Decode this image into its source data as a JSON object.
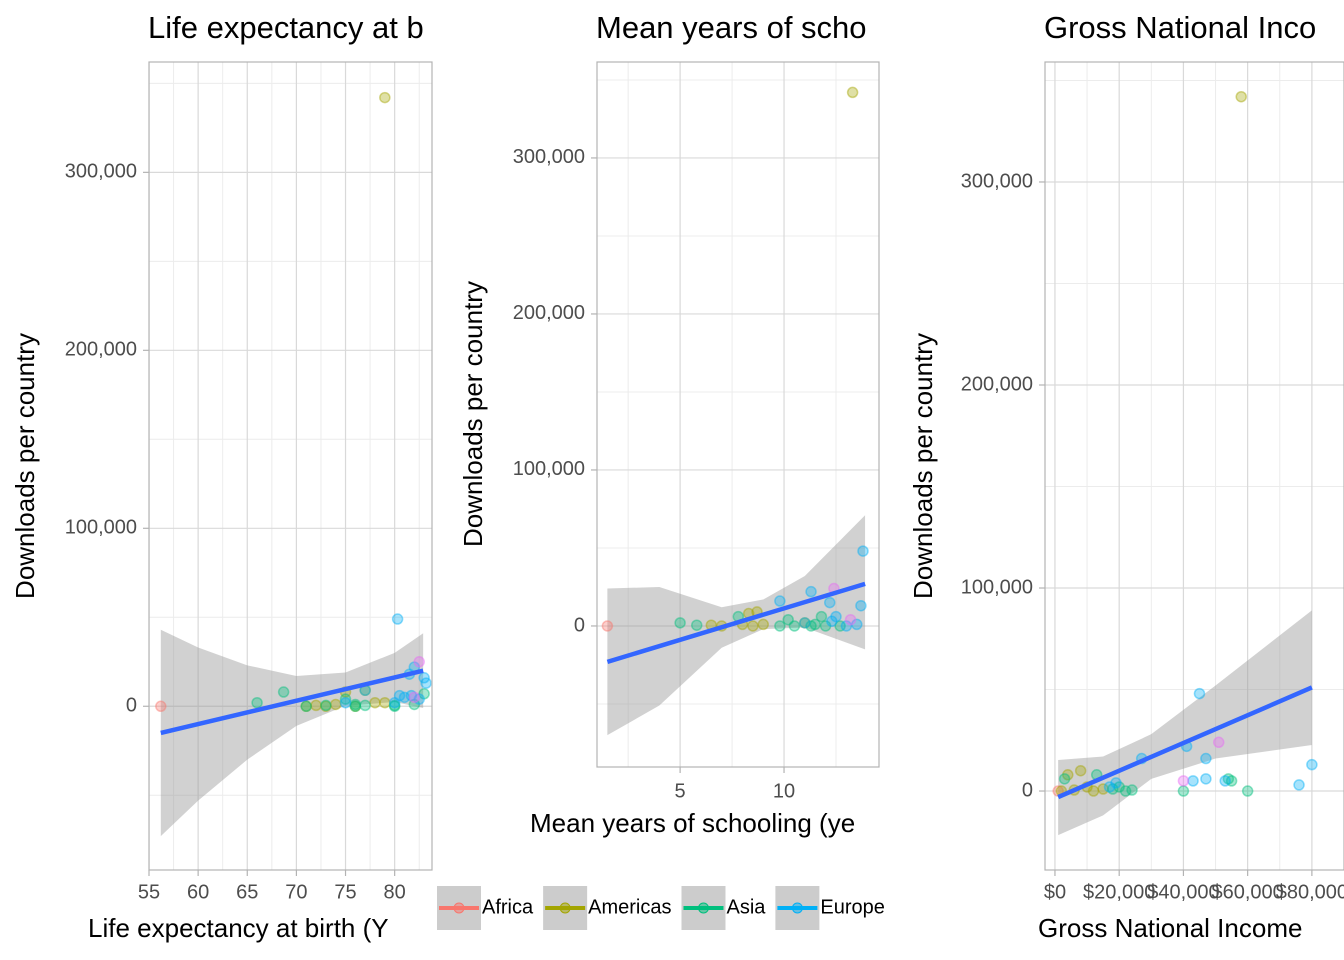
{
  "chart_data": [
    {
      "type": "scatter",
      "title": "Life expectancy at b",
      "x_label": "Life expectancy at birth (Y",
      "y_label": "Downloads per country",
      "xlim": [
        55,
        83.8
      ],
      "ylim": [
        -92000,
        362000
      ],
      "xticks": [
        55,
        60,
        65,
        70,
        75,
        80
      ],
      "yticks": [
        0,
        {
          "value": 100000,
          "label": "100,000"
        },
        {
          "value": 200000,
          "label": "200,000"
        },
        {
          "value": 300000,
          "label": "300,000"
        }
      ],
      "grid": true,
      "series": [
        {
          "name": "Africa",
          "color": "#F8766D",
          "x": [
            56.2
          ],
          "y": [
            0
          ]
        },
        {
          "name": "Americas",
          "color": "#A3A500",
          "x": [
            79,
            75,
            78,
            73,
            72,
            77,
            74,
            76,
            71,
            79
          ],
          "y": [
            342000,
            8000,
            2000,
            0,
            500,
            9000,
            1000,
            0,
            0,
            2000
          ]
        },
        {
          "name": "Asia",
          "color": "#00BF7D",
          "x": [
            66,
            68.7,
            71,
            75,
            76,
            80,
            82,
            83,
            73,
            77,
            80,
            76
          ],
          "y": [
            2000,
            8000,
            0,
            4000,
            1000,
            500,
            1000,
            7000,
            500,
            500,
            0,
            0
          ]
        },
        {
          "name": "Europe",
          "color": "#00B0F6",
          "x": [
            80.3,
            81.5,
            82,
            83,
            83.2,
            80.5,
            81,
            77,
            80,
            81.7,
            82.5,
            75
          ],
          "y": [
            49000,
            18000,
            22000,
            16000,
            13000,
            6000,
            5000,
            9000,
            2000,
            6000,
            4000,
            2000
          ]
        },
        {
          "color": "#E76BF3",
          "x": [
            82.5,
            82
          ],
          "y": [
            25000,
            5000
          ]
        }
      ],
      "fit": {
        "color": "#3366FF",
        "x": [
          56.2,
          82.9
        ],
        "y": [
          -15000,
          20000
        ]
      },
      "band": {
        "color": "#999999",
        "x": [
          56.2,
          60,
          65,
          70,
          75,
          80,
          82.9
        ],
        "upper": [
          43000,
          33000,
          23000,
          17000,
          19000,
          30000,
          41000
        ],
        "lower": [
          -73000,
          -53000,
          -30000,
          -11000,
          300,
          2400,
          -1000
        ]
      }
    },
    {
      "type": "scatter",
      "title": "Mean years of scho",
      "x_label": "Mean years of schooling (ye",
      "y_label": "Downloads per country",
      "xlim": [
        1,
        14.57
      ],
      "ylim": [
        -90400,
        361500
      ],
      "xticks": [
        5,
        10
      ],
      "yticks": [
        0,
        {
          "value": 100000,
          "label": "100,000"
        },
        {
          "value": 200000,
          "label": "200,000"
        },
        {
          "value": 300000,
          "label": "300,000"
        }
      ],
      "grid": true,
      "series": [
        {
          "color": "#F8766D",
          "x": [
            1.5
          ],
          "y": [
            0
          ]
        },
        {
          "color": "#A3A500",
          "x": [
            13.3,
            8,
            8.3,
            8.7,
            7,
            6.5,
            9,
            11,
            8.5
          ],
          "y": [
            342000,
            1000,
            8000,
            9000,
            0,
            500,
            1000,
            2000,
            0
          ]
        },
        {
          "color": "#00BF7D",
          "x": [
            5,
            5.8,
            7.8,
            10.2,
            10.5,
            11.3,
            12,
            12.7,
            11.8,
            9.8,
            11.5
          ],
          "y": [
            2000,
            500,
            6000,
            4000,
            0,
            0,
            0,
            0,
            6000,
            0,
            1000
          ]
        },
        {
          "color": "#00B0F6",
          "x": [
            9.8,
            11.3,
            12.2,
            13.7,
            13.8,
            13.5,
            12.5,
            11,
            12.3,
            13
          ],
          "y": [
            16000,
            22000,
            15000,
            13000,
            48000,
            1000,
            6000,
            2000,
            3000,
            0
          ]
        },
        {
          "color": "#E76BF3",
          "x": [
            12.4,
            13.2
          ],
          "y": [
            24000,
            4000
          ]
        }
      ],
      "fit": {
        "color": "#3366FF",
        "x": [
          1.5,
          13.9
        ],
        "y": [
          -23000,
          27000
        ]
      },
      "band": {
        "color": "#999999",
        "x": [
          1.5,
          4,
          7,
          9,
          11,
          13.9
        ],
        "upper": [
          24000,
          25000,
          12000,
          17000,
          32000,
          71000
        ],
        "lower": [
          -70000,
          -51000,
          -14000,
          -2000,
          -1000,
          -15000
        ]
      }
    },
    {
      "type": "scatter",
      "title": "Gross National Inco",
      "x_label": "Gross National Income",
      "y_label": "Downloads per country",
      "xlim": [
        -3100,
        90000
      ],
      "ylim": [
        -38900,
        359100
      ],
      "xticks": [
        {
          "value": 0,
          "label": "$0"
        },
        {
          "value": 20000,
          "label": "$20,000"
        },
        {
          "value": 40000,
          "label": "$40,000"
        },
        {
          "value": 60000,
          "label": "$60,000"
        },
        {
          "value": 80000,
          "label": "$80,000"
        }
      ],
      "yticks": [
        0,
        {
          "value": 100000,
          "label": "100,000"
        },
        {
          "value": 200000,
          "label": "200,000"
        },
        {
          "value": 300000,
          "label": "300,000"
        }
      ],
      "grid": true,
      "series": [
        {
          "color": "#F8766D",
          "x": [
            1000
          ],
          "y": [
            0
          ]
        },
        {
          "color": "#A3A500",
          "x": [
            58000,
            8000,
            4000,
            2000,
            10000,
            15000,
            12000,
            6000
          ],
          "y": [
            342000,
            10000,
            8000,
            0,
            2000,
            1000,
            0,
            500
          ]
        },
        {
          "color": "#00BF7D",
          "x": [
            3000,
            13000,
            18000,
            22000,
            40000,
            54000,
            55000,
            60000,
            24000,
            20000
          ],
          "y": [
            6000,
            8000,
            1000,
            0,
            0,
            6000,
            5000,
            0,
            500,
            2000
          ]
        },
        {
          "color": "#00B0F6",
          "x": [
            45000,
            27000,
            41000,
            47000,
            43000,
            47000,
            53000,
            76000,
            80000,
            17000,
            19000
          ],
          "y": [
            48000,
            16000,
            22000,
            16000,
            5000,
            6000,
            5000,
            3000,
            13000,
            2000,
            4000
          ]
        },
        {
          "color": "#E76BF3",
          "x": [
            51000,
            40000
          ],
          "y": [
            24000,
            5000
          ]
        }
      ],
      "fit": {
        "color": "#3366FF",
        "x": [
          1000,
          80000
        ],
        "y": [
          -3000,
          51000
        ]
      },
      "band": {
        "color": "#999999",
        "x": [
          1000,
          15000,
          30000,
          50000,
          80000
        ],
        "upper": [
          15300,
          17000,
          28000,
          52000,
          89000
        ],
        "lower": [
          -21700,
          -12000,
          6000,
          16000,
          22700
        ]
      }
    }
  ]
}
